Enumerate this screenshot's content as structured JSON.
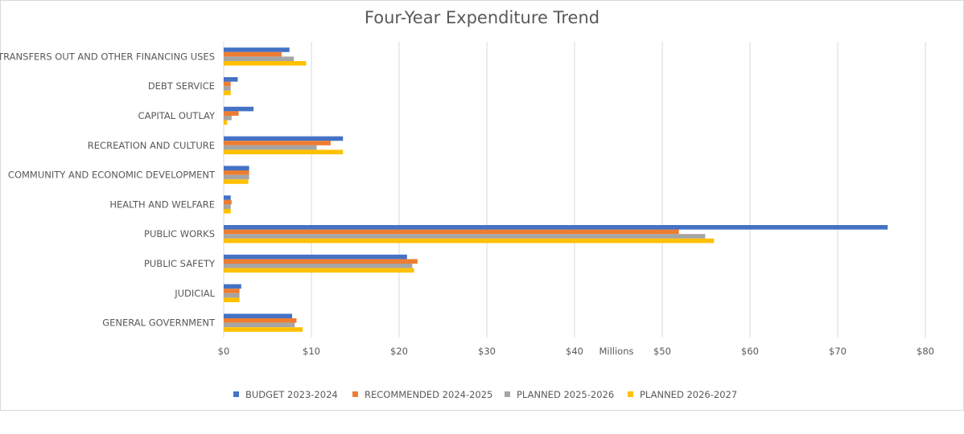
{
  "chart_data": {
    "type": "bar",
    "orientation": "horizontal",
    "title": "Four-Year Expenditure Trend",
    "xlabel": "Millions",
    "xlim": [
      0,
      80
    ],
    "x_ticks": [
      "$0",
      "$10",
      "$20",
      "$30",
      "$40",
      "$50",
      "$60",
      "$70",
      "$80"
    ],
    "grid": "vertical",
    "legend_position": "bottom",
    "categories": [
      "GENERAL GOVERNMENT",
      "JUDICIAL",
      "PUBLIC SAFETY",
      "PUBLIC WORKS",
      "HEALTH AND WELFARE",
      "COMMUNITY AND ECONOMIC DEVELOPMENT",
      "RECREATION AND CULTURE",
      "CAPITAL OUTLAY",
      "DEBT SERVICE",
      "TRANSFERS OUT AND OTHER FINANCING USES"
    ],
    "series": [
      {
        "name": "BUDGET 2023-2024",
        "color": "#4472c4",
        "values": [
          7.8,
          2.0,
          20.9,
          75.7,
          0.8,
          2.9,
          13.6,
          3.4,
          1.6,
          7.5
        ]
      },
      {
        "name": "RECOMMENDED 2024-2025",
        "color": "#ed7d31",
        "values": [
          8.3,
          1.8,
          22.1,
          51.9,
          0.9,
          2.9,
          12.2,
          1.7,
          0.8,
          6.6
        ]
      },
      {
        "name": "PLANNED 2025-2026",
        "color": "#a5a5a5",
        "values": [
          8.1,
          1.8,
          21.5,
          54.9,
          0.8,
          2.9,
          10.6,
          0.9,
          0.8,
          8.0
        ]
      },
      {
        "name": "PLANNED 2026-2027",
        "color": "#ffc000",
        "values": [
          9.0,
          1.8,
          21.7,
          55.9,
          0.8,
          2.8,
          13.6,
          0.4,
          0.8,
          9.4
        ]
      }
    ]
  }
}
